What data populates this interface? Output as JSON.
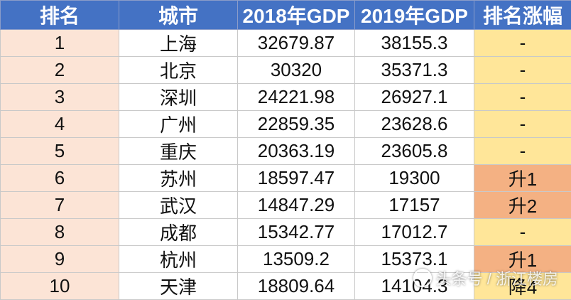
{
  "table": {
    "headers": [
      "排名",
      "城市",
      "2018年GDP",
      "2019年GDP",
      "排名涨幅"
    ],
    "rows": [
      {
        "rank": "1",
        "city": "上海",
        "gdp2018": "32679.87",
        "gdp2019": "38155.3",
        "change": "-",
        "change_type": "flat"
      },
      {
        "rank": "2",
        "city": "北京",
        "gdp2018": "30320",
        "gdp2019": "35371.3",
        "change": "-",
        "change_type": "flat"
      },
      {
        "rank": "3",
        "city": "深圳",
        "gdp2018": "24221.98",
        "gdp2019": "26927.1",
        "change": "-",
        "change_type": "flat"
      },
      {
        "rank": "4",
        "city": "广州",
        "gdp2018": "22859.35",
        "gdp2019": "23628.6",
        "change": "-",
        "change_type": "flat"
      },
      {
        "rank": "5",
        "city": "重庆",
        "gdp2018": "20363.19",
        "gdp2019": "23605.8",
        "change": "-",
        "change_type": "flat"
      },
      {
        "rank": "6",
        "city": "苏州",
        "gdp2018": "18597.47",
        "gdp2019": "19300",
        "change": "升1",
        "change_type": "up"
      },
      {
        "rank": "7",
        "city": "武汉",
        "gdp2018": "14847.29",
        "gdp2019": "17157",
        "change": "升2",
        "change_type": "up"
      },
      {
        "rank": "8",
        "city": "成都",
        "gdp2018": "15342.77",
        "gdp2019": "17012.7",
        "change": "-",
        "change_type": "flat"
      },
      {
        "rank": "9",
        "city": "杭州",
        "gdp2018": "13509.2",
        "gdp2019": "15373.1",
        "change": "升1",
        "change_type": "up"
      },
      {
        "rank": "10",
        "city": "天津",
        "gdp2018": "18809.64",
        "gdp2019": "14104.3",
        "change": "降4",
        "change_type": "down"
      }
    ]
  },
  "watermark": {
    "text": "头条号 / 浙江楼房"
  },
  "colors": {
    "header_bg": "#4472c4",
    "rank_bg": "#fce4d6",
    "flat_bg": "#ffe699",
    "up_bg": "#f4b183"
  }
}
